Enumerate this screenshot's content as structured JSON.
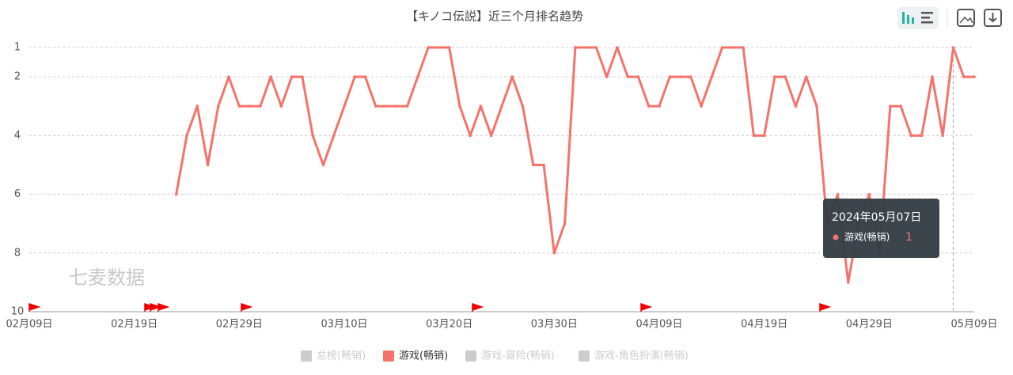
{
  "chart_data": {
    "type": "line",
    "title": "【キノコ伝説】近三个月排名趋势",
    "watermark": "七麦数据",
    "categories": [
      "02月09日",
      null,
      null,
      null,
      null,
      null,
      null,
      null,
      null,
      null,
      "02月19日",
      null,
      null,
      null,
      null,
      null,
      null,
      null,
      null,
      null,
      "02月29日",
      null,
      null,
      null,
      null,
      null,
      null,
      null,
      null,
      null,
      "03月10日",
      null,
      null,
      null,
      null,
      null,
      null,
      null,
      null,
      null,
      "03月20日",
      null,
      null,
      null,
      null,
      null,
      null,
      null,
      null,
      null,
      "03月30日",
      null,
      null,
      null,
      null,
      null,
      null,
      null,
      null,
      null,
      "04月09日",
      null,
      null,
      null,
      null,
      null,
      null,
      null,
      null,
      null,
      "04月19日",
      null,
      null,
      null,
      null,
      null,
      null,
      null,
      null,
      null,
      "04月29日",
      null,
      null,
      null,
      null,
      null,
      null,
      null,
      null,
      null,
      "05月09日"
    ],
    "series": [
      {
        "name": "总榜(畅销)",
        "color": "#cccccc",
        "hidden": true
      },
      {
        "name": "游戏(畅销)",
        "color": "#f5736b",
        "values": [
          null,
          null,
          null,
          null,
          null,
          null,
          null,
          null,
          null,
          null,
          null,
          null,
          null,
          null,
          6,
          4,
          3,
          5,
          3,
          2,
          3,
          3,
          3,
          2,
          3,
          2,
          2,
          4,
          5,
          4,
          3,
          2,
          2,
          3,
          3,
          3,
          3,
          2,
          1,
          1,
          1,
          3,
          4,
          3,
          4,
          3,
          2,
          3,
          5,
          5,
          8,
          7,
          1,
          1,
          1,
          2,
          1,
          2,
          2,
          3,
          3,
          2,
          2,
          2,
          3,
          2,
          1,
          1,
          1,
          4,
          4,
          2,
          2,
          3,
          2,
          3,
          7,
          6,
          9,
          7,
          6,
          8,
          3,
          3,
          4,
          4,
          2,
          4,
          1,
          2,
          2
        ]
      },
      {
        "name": "游戏-冒险(畅销)",
        "color": "#cccccc",
        "hidden": true
      },
      {
        "name": "游戏-角色扮演(畅销)",
        "color": "#cccccc",
        "hidden": true
      }
    ],
    "ylim": [
      1,
      10
    ],
    "y_inverted": true,
    "yticks": [
      1,
      2,
      4,
      6,
      8,
      10
    ],
    "grid": true,
    "tooltip": {
      "title": "2024年05月07日",
      "series": "游戏(畅销)",
      "value": 1
    }
  }
}
